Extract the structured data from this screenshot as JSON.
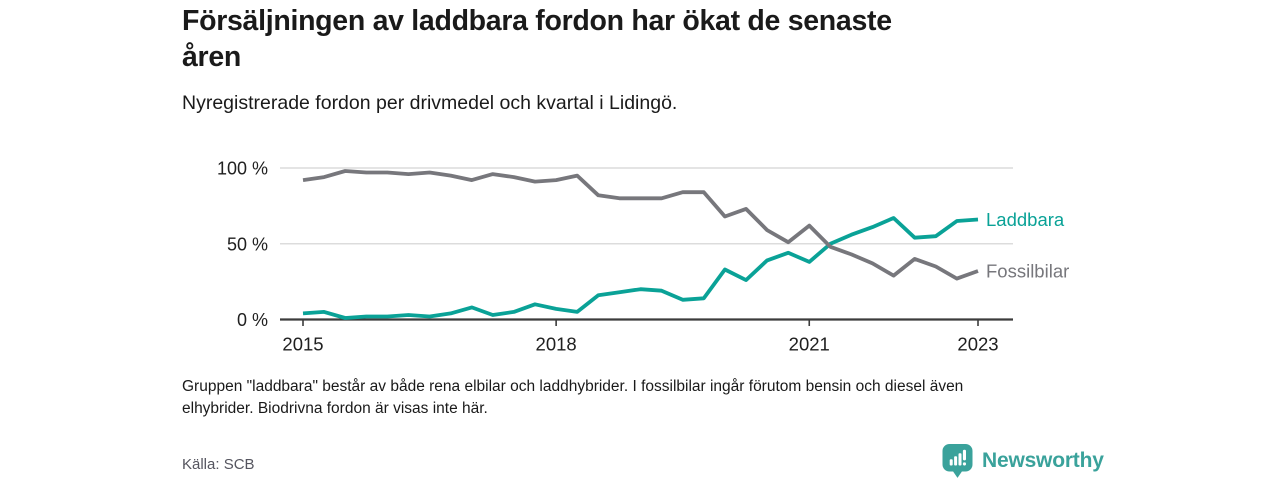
{
  "header": {
    "title": "Försäljningen av laddbara fordon har ökat de senaste\nåren",
    "subtitle": "Nyregistrerade fordon per drivmedel och kvartal i Lidingö."
  },
  "chart_data": {
    "type": "line",
    "x_unit": "quarter",
    "grid": "horizontal",
    "ylim": [
      0,
      100
    ],
    "yticks": [
      {
        "value": 0,
        "label": "0 %"
      },
      {
        "value": 50,
        "label": "50 %"
      },
      {
        "value": 100,
        "label": "100 %"
      }
    ],
    "xticks": [
      {
        "year": 2015,
        "label": "2015"
      },
      {
        "year": 2018,
        "label": "2018"
      },
      {
        "year": 2021,
        "label": "2021"
      },
      {
        "year": 2023,
        "label": "2023"
      }
    ],
    "x": [
      "2015 Q1",
      "2015 Q2",
      "2015 Q3",
      "2015 Q4",
      "2016 Q1",
      "2016 Q2",
      "2016 Q3",
      "2016 Q4",
      "2017 Q1",
      "2017 Q2",
      "2017 Q3",
      "2017 Q4",
      "2018 Q1",
      "2018 Q2",
      "2018 Q3",
      "2018 Q4",
      "2019 Q1",
      "2019 Q2",
      "2019 Q3",
      "2019 Q4",
      "2020 Q1",
      "2020 Q2",
      "2020 Q3",
      "2020 Q4",
      "2021 Q1",
      "2021 Q2",
      "2021 Q3",
      "2021 Q4",
      "2022 Q1",
      "2022 Q2",
      "2022 Q3",
      "2022 Q4",
      "2023 Q1"
    ],
    "series": [
      {
        "name": "Laddbara",
        "color": "#0aa297",
        "values": [
          4,
          5,
          1,
          2,
          2,
          3,
          2,
          4,
          8,
          3,
          5,
          10,
          7,
          5,
          16,
          18,
          20,
          19,
          13,
          14,
          33,
          26,
          39,
          44,
          38,
          50,
          56,
          61,
          67,
          54,
          55,
          65,
          66
        ]
      },
      {
        "name": "Fossilbilar",
        "color": "#77777c",
        "values": [
          92,
          94,
          98,
          97,
          97,
          96,
          97,
          95,
          92,
          96,
          94,
          91,
          92,
          95,
          82,
          80,
          80,
          80,
          84,
          84,
          68,
          73,
          59,
          51,
          62,
          48,
          43,
          37,
          29,
          40,
          35,
          27,
          32
        ]
      }
    ],
    "legend_position": "right-end-labels",
    "axis_color": "#3c3c3c",
    "gridline_color": "#dcdcdc",
    "tick_label_color": "#202020"
  },
  "footer": {
    "note": "Gruppen \"laddbara\" består av både rena elbilar och laddhybrider. I fossilbilar ingår förutom bensin och diesel även\nelhybrider. Biodrivna fordon är visas inte här.",
    "source": "Källa: SCB",
    "brand": "Newsworthy"
  }
}
